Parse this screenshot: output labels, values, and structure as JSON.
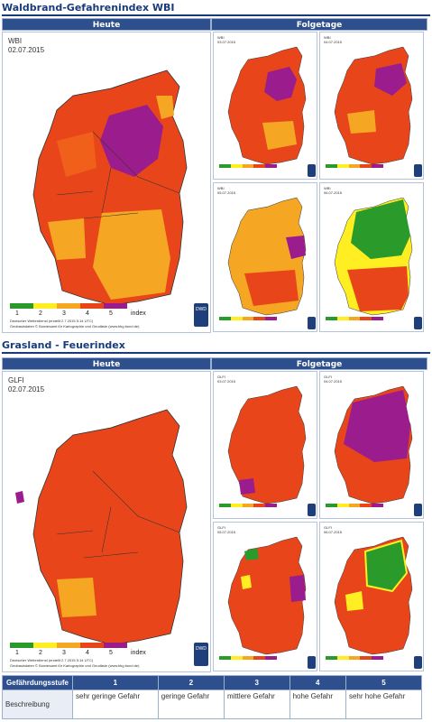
{
  "wbi": {
    "title": "Waldbrand-Gefahrenindex WBI",
    "heute_label": "Heute",
    "folgetage_label": "Folgetage",
    "main_index_label": "WBI",
    "main_date": "02.07.2015",
    "legend_nums": [
      "1",
      "2",
      "3",
      "4",
      "5"
    ],
    "legend_unit": "index",
    "footer_line1": "Deutscher Wetterdienst (erstellt 2.7.2015 5:14 UTC)",
    "footer_line2": "Geobasisdaten © Bundesamt für Kartographie und Geodäsie (www.bkg.bund.de)",
    "thumbs": [
      {
        "label": "WBI",
        "date": "03.07.2015"
      },
      {
        "label": "WBI",
        "date": "04.07.2015"
      },
      {
        "label": "WBI",
        "date": "05.07.2015"
      },
      {
        "label": "WBI",
        "date": "06.07.2015"
      }
    ]
  },
  "glfi": {
    "title": "Grasland - Feuerindex",
    "heute_label": "Heute",
    "folgetage_label": "Folgetage",
    "main_index_label": "GLFI",
    "main_date": "02.07.2015",
    "legend_nums": [
      "1",
      "2",
      "3",
      "4",
      "5"
    ],
    "legend_unit": "index",
    "footer_line1": "Deutscher Wetterdienst (erstellt 2.7.2015 5:14 UTC)",
    "footer_line2": "Geobasisdaten © Bundesamt für Kartographie und Geodäsie (www.bkg.bund.de)",
    "thumbs": [
      {
        "label": "GLFI",
        "date": "03.07.2015"
      },
      {
        "label": "GLFI",
        "date": "04.07.2015"
      },
      {
        "label": "GLFI",
        "date": "05.07.2015"
      },
      {
        "label": "GLFI",
        "date": "06.07.2015"
      }
    ]
  },
  "dwd_logo_text": "DWD",
  "legend_colors": [
    "#2a9a2a",
    "#ffee22",
    "#f5a623",
    "#e8461a",
    "#9b1c8c"
  ],
  "scale_table": {
    "header_first": "Gefährdungsstufe",
    "levels": [
      "1",
      "2",
      "3",
      "4",
      "5"
    ],
    "row_label": "Beschreibung",
    "descriptions": [
      "sehr geringe Gefahr",
      "geringe Gefahr",
      "mittlere Gefahr",
      "hohe Gefahr",
      "sehr hohe Gefahr"
    ]
  }
}
